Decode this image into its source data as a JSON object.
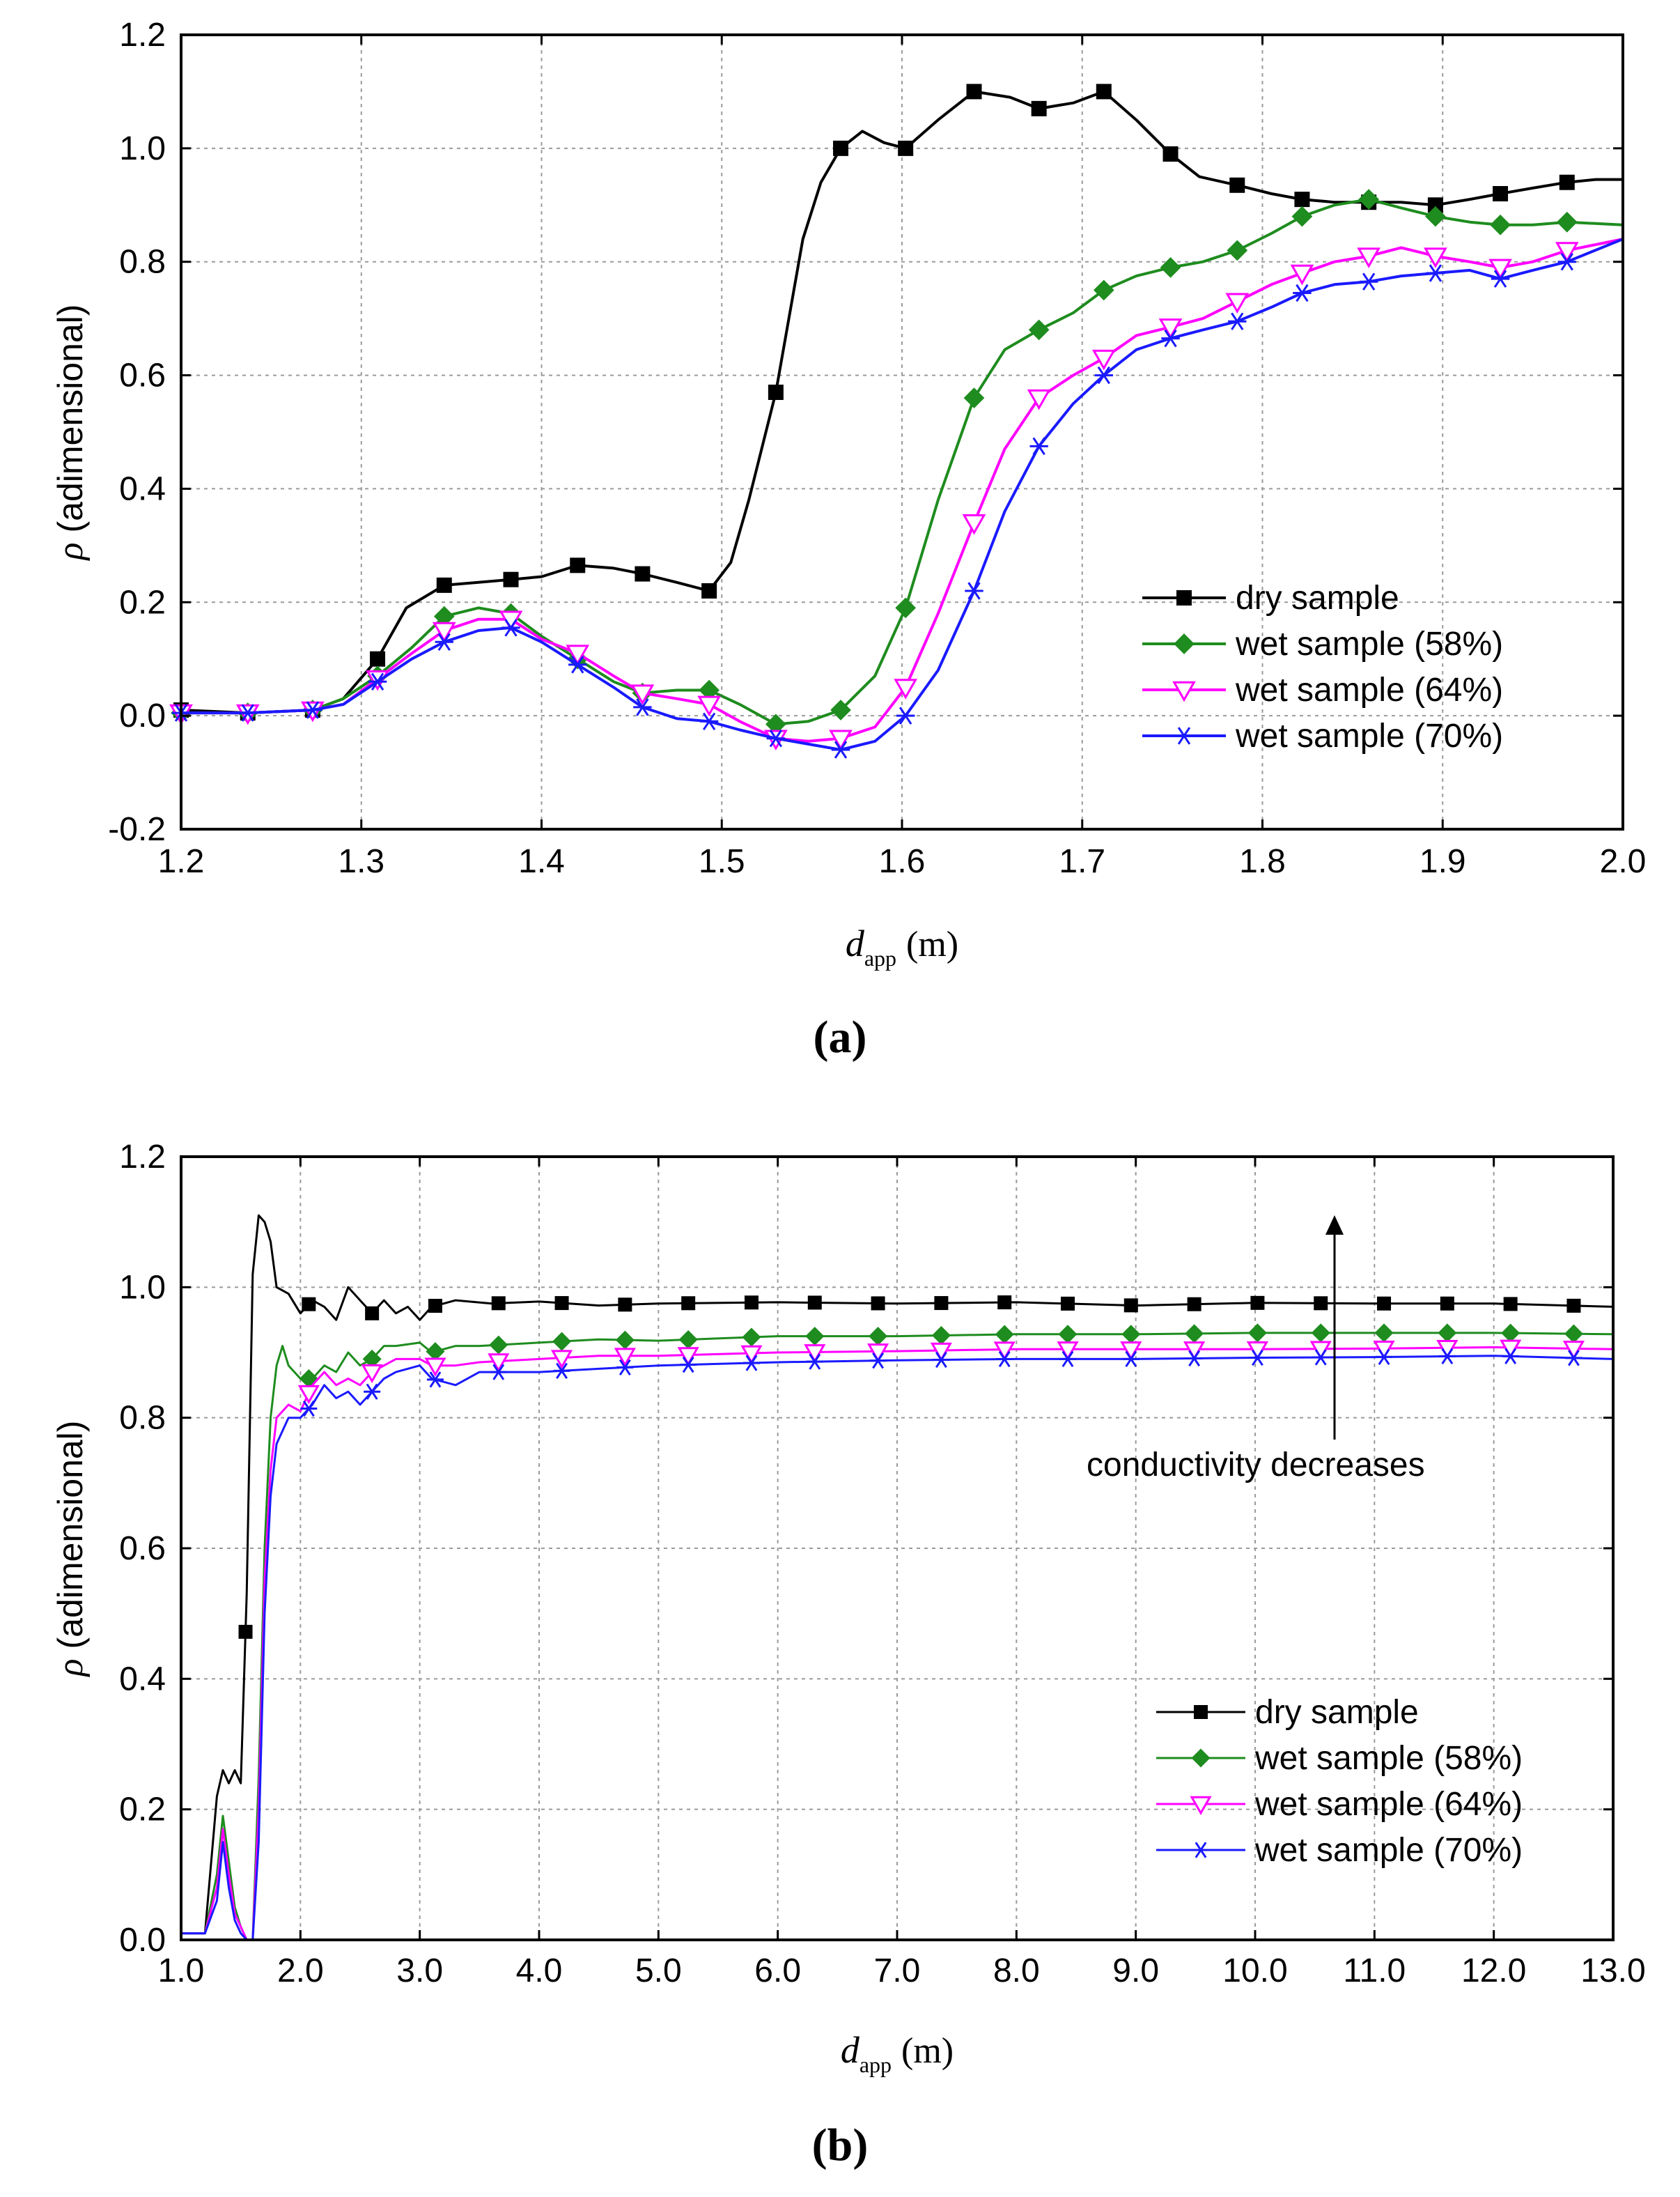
{
  "panels": [
    {
      "panel_label": "(a)",
      "ylabel_symbol": "ρ",
      "ylabel": "(adimensional)",
      "xlabel_symbol": "d",
      "xlabel_subscript": "app",
      "xlabel_unit": "(m)",
      "legend": [
        "dry sample",
        "wet sample (58%)",
        "wet sample (64%)",
        "wet sample (70%)"
      ]
    },
    {
      "panel_label": "(b)",
      "ylabel_symbol": "ρ",
      "ylabel": "(adimensional)",
      "xlabel_symbol": "d",
      "xlabel_subscript": "app",
      "xlabel_unit": "(m)",
      "legend": [
        "dry sample",
        "wet sample (58%)",
        "wet sample (64%)",
        "wet sample (70%)"
      ],
      "annotation": "conductivity decreases"
    }
  ],
  "chart_data": [
    {
      "type": "line",
      "title": "",
      "xlabel": "d_app (m)",
      "ylabel": "ρ (adimensional)",
      "xlim": [
        1.2,
        2.0
      ],
      "ylim": [
        -0.2,
        1.2
      ],
      "xticks": [
        "1.2",
        "1.3",
        "1.4",
        "1.5",
        "1.6",
        "1.7",
        "1.8",
        "1.9",
        "2.0"
      ],
      "yticks": [
        "-0.2",
        "0.0",
        "0.2",
        "0.4",
        "0.6",
        "0.8",
        "1.0",
        "1.2"
      ],
      "grid": true,
      "legend_position": "lower-right",
      "series": [
        {
          "name": "dry sample",
          "color": "#000000",
          "marker": "square",
          "x": [
            1.2,
            1.237,
            1.273,
            1.29,
            1.309,
            1.325,
            1.346,
            1.365,
            1.383,
            1.4,
            1.42,
            1.44,
            1.456,
            1.475,
            1.493,
            1.505,
            1.515,
            1.53,
            1.545,
            1.555,
            1.566,
            1.578,
            1.59,
            1.602,
            1.62,
            1.64,
            1.66,
            1.676,
            1.695,
            1.712,
            1.73,
            1.749,
            1.765,
            1.786,
            1.805,
            1.822,
            1.84,
            1.859,
            1.877,
            1.896,
            1.915,
            1.932,
            1.95,
            1.969,
            1.985,
            2.0
          ],
          "y": [
            0.01,
            0.005,
            0.01,
            0.03,
            0.1,
            0.19,
            0.23,
            0.235,
            0.24,
            0.245,
            0.265,
            0.26,
            0.25,
            0.235,
            0.22,
            0.27,
            0.38,
            0.57,
            0.84,
            0.94,
            1.0,
            1.03,
            1.01,
            1.0,
            1.05,
            1.1,
            1.09,
            1.07,
            1.08,
            1.1,
            1.05,
            0.99,
            0.95,
            0.935,
            0.92,
            0.91,
            0.905,
            0.905,
            0.905,
            0.9,
            0.91,
            0.92,
            0.93,
            0.94,
            0.945,
            0.945
          ],
          "marker_x": [
            1.2,
            1.237,
            1.273,
            1.309,
            1.346,
            1.383,
            1.42,
            1.456,
            1.493,
            1.53,
            1.566,
            1.602,
            1.64,
            1.676,
            1.712,
            1.749,
            1.786,
            1.822,
            1.859,
            1.896,
            1.932,
            1.969
          ]
        },
        {
          "name": "wet sample (58%)",
          "color": "#1e8c1e",
          "marker": "diamond",
          "x": [
            1.2,
            1.237,
            1.273,
            1.29,
            1.309,
            1.328,
            1.346,
            1.365,
            1.383,
            1.4,
            1.42,
            1.44,
            1.456,
            1.475,
            1.493,
            1.51,
            1.53,
            1.548,
            1.566,
            1.585,
            1.602,
            1.62,
            1.64,
            1.657,
            1.676,
            1.695,
            1.712,
            1.73,
            1.749,
            1.767,
            1.786,
            1.805,
            1.822,
            1.84,
            1.859,
            1.877,
            1.896,
            1.915,
            1.932,
            1.95,
            1.969,
            2.0
          ],
          "y": [
            0.005,
            0.005,
            0.01,
            0.03,
            0.07,
            0.12,
            0.175,
            0.19,
            0.18,
            0.14,
            0.1,
            0.06,
            0.04,
            0.045,
            0.045,
            0.02,
            -0.015,
            -0.01,
            0.01,
            0.07,
            0.19,
            0.38,
            0.56,
            0.645,
            0.68,
            0.71,
            0.75,
            0.775,
            0.79,
            0.8,
            0.82,
            0.85,
            0.88,
            0.9,
            0.91,
            0.895,
            0.88,
            0.87,
            0.865,
            0.865,
            0.87,
            0.865
          ],
          "marker_x": [
            1.2,
            1.237,
            1.273,
            1.309,
            1.346,
            1.383,
            1.42,
            1.456,
            1.493,
            1.53,
            1.566,
            1.602,
            1.64,
            1.676,
            1.712,
            1.749,
            1.786,
            1.822,
            1.859,
            1.896,
            1.932,
            1.969
          ]
        },
        {
          "name": "wet sample (64%)",
          "color": "#ff00ff",
          "marker": "triangle-down",
          "x": [
            1.2,
            1.237,
            1.273,
            1.29,
            1.309,
            1.328,
            1.346,
            1.365,
            1.383,
            1.4,
            1.42,
            1.44,
            1.456,
            1.475,
            1.493,
            1.51,
            1.53,
            1.548,
            1.566,
            1.585,
            1.602,
            1.62,
            1.64,
            1.657,
            1.676,
            1.695,
            1.712,
            1.73,
            1.749,
            1.767,
            1.786,
            1.805,
            1.822,
            1.84,
            1.859,
            1.877,
            1.896,
            1.915,
            1.932,
            1.95,
            1.969,
            2.0
          ],
          "y": [
            0.005,
            0.005,
            0.01,
            0.02,
            0.065,
            0.11,
            0.15,
            0.17,
            0.17,
            0.135,
            0.11,
            0.07,
            0.04,
            0.03,
            0.02,
            -0.01,
            -0.04,
            -0.045,
            -0.04,
            -0.02,
            0.05,
            0.18,
            0.34,
            0.47,
            0.56,
            0.6,
            0.63,
            0.67,
            0.685,
            0.7,
            0.73,
            0.76,
            0.78,
            0.8,
            0.81,
            0.825,
            0.81,
            0.8,
            0.79,
            0.8,
            0.82,
            0.84
          ],
          "marker_x": [
            1.2,
            1.237,
            1.273,
            1.309,
            1.346,
            1.383,
            1.42,
            1.456,
            1.493,
            1.53,
            1.566,
            1.602,
            1.64,
            1.676,
            1.712,
            1.749,
            1.786,
            1.822,
            1.859,
            1.896,
            1.932,
            1.969
          ]
        },
        {
          "name": "wet sample (70%)",
          "color": "#1a1aff",
          "marker": "asterisk",
          "x": [
            1.2,
            1.237,
            1.273,
            1.29,
            1.309,
            1.328,
            1.346,
            1.365,
            1.383,
            1.4,
            1.42,
            1.44,
            1.456,
            1.475,
            1.493,
            1.51,
            1.53,
            1.548,
            1.566,
            1.585,
            1.602,
            1.62,
            1.64,
            1.657,
            1.676,
            1.695,
            1.712,
            1.73,
            1.749,
            1.767,
            1.786,
            1.805,
            1.822,
            1.84,
            1.859,
            1.877,
            1.896,
            1.915,
            1.932,
            1.95,
            1.969,
            2.0
          ],
          "y": [
            0.005,
            0.005,
            0.01,
            0.02,
            0.06,
            0.1,
            0.13,
            0.15,
            0.155,
            0.13,
            0.09,
            0.05,
            0.015,
            -0.005,
            -0.01,
            -0.025,
            -0.04,
            -0.05,
            -0.06,
            -0.045,
            0.0,
            0.08,
            0.22,
            0.36,
            0.475,
            0.55,
            0.6,
            0.645,
            0.665,
            0.68,
            0.695,
            0.72,
            0.745,
            0.76,
            0.765,
            0.775,
            0.78,
            0.785,
            0.77,
            0.785,
            0.8,
            0.84
          ],
          "marker_x": [
            1.2,
            1.237,
            1.273,
            1.309,
            1.346,
            1.383,
            1.42,
            1.456,
            1.493,
            1.53,
            1.566,
            1.602,
            1.64,
            1.676,
            1.712,
            1.749,
            1.786,
            1.822,
            1.859,
            1.896,
            1.932,
            1.969
          ]
        }
      ]
    },
    {
      "type": "line",
      "title": "",
      "xlabel": "d_app (m)",
      "ylabel": "ρ (adimensional)",
      "xlim": [
        1.0,
        13.0
      ],
      "ylim": [
        0.0,
        1.2
      ],
      "xticks": [
        "1.0",
        "2.0",
        "3.0",
        "4.0",
        "5.0",
        "6.0",
        "7.0",
        "8.0",
        "9.0",
        "10.0",
        "11.0",
        "12.0",
        "13.0"
      ],
      "yticks": [
        "0.0",
        "0.2",
        "0.4",
        "0.6",
        "0.8",
        "1.0",
        "1.2"
      ],
      "grid": true,
      "legend_position": "lower-right",
      "series": [
        {
          "name": "dry sample",
          "color": "#000000",
          "marker": "square",
          "x": [
            1.0,
            1.1,
            1.2,
            1.3,
            1.35,
            1.4,
            1.45,
            1.5,
            1.55,
            1.6,
            1.65,
            1.7,
            1.75,
            1.8,
            1.9,
            2.0,
            2.1,
            2.2,
            2.3,
            2.4,
            2.5,
            2.6,
            2.7,
            2.8,
            2.9,
            3.0,
            3.1,
            3.3,
            3.6,
            4.0,
            4.5,
            5.0,
            6.0,
            7.0,
            8.0,
            9.0,
            10.0,
            11.0,
            12.0,
            13.0
          ],
          "y": [
            0.01,
            0.01,
            0.01,
            0.22,
            0.26,
            0.24,
            0.26,
            0.24,
            0.53,
            1.02,
            1.11,
            1.1,
            1.07,
            1.0,
            0.99,
            0.96,
            0.98,
            0.97,
            0.95,
            1.0,
            0.98,
            0.96,
            0.98,
            0.96,
            0.97,
            0.95,
            0.97,
            0.98,
            0.975,
            0.978,
            0.972,
            0.975,
            0.977,
            0.975,
            0.977,
            0.972,
            0.976,
            0.975,
            0.975,
            0.97
          ],
          "marker_x": [
            1.54,
            2.07,
            2.6,
            3.13,
            3.66,
            4.19,
            4.72,
            5.25,
            5.78,
            6.31,
            6.84,
            7.37,
            7.9,
            8.43,
            8.96,
            9.49,
            10.02,
            10.55,
            11.08,
            11.61,
            12.14,
            12.67
          ]
        },
        {
          "name": "wet sample (58%)",
          "color": "#1e8c1e",
          "marker": "diamond",
          "x": [
            1.0,
            1.1,
            1.2,
            1.3,
            1.35,
            1.4,
            1.45,
            1.5,
            1.55,
            1.58,
            1.6,
            1.65,
            1.7,
            1.75,
            1.8,
            1.85,
            1.9,
            2.0,
            2.1,
            2.2,
            2.3,
            2.4,
            2.5,
            2.6,
            2.7,
            2.8,
            3.0,
            3.1,
            3.3,
            3.5,
            4.0,
            4.5,
            5.0,
            6.0,
            7.0,
            8.0,
            9.0,
            10.0,
            11.0,
            12.0,
            13.0
          ],
          "y": [
            0.01,
            0.01,
            0.01,
            0.1,
            0.19,
            0.12,
            0.05,
            0.02,
            0.0,
            0.0,
            0.0,
            0.25,
            0.6,
            0.8,
            0.88,
            0.91,
            0.88,
            0.86,
            0.86,
            0.88,
            0.87,
            0.9,
            0.88,
            0.89,
            0.91,
            0.91,
            0.915,
            0.9,
            0.91,
            0.91,
            0.915,
            0.92,
            0.918,
            0.925,
            0.925,
            0.928,
            0.928,
            0.93,
            0.93,
            0.93,
            0.928
          ],
          "marker_x": [
            2.07,
            2.6,
            3.13,
            3.66,
            4.19,
            4.72,
            5.25,
            5.78,
            6.31,
            6.84,
            7.37,
            7.9,
            8.43,
            8.96,
            9.49,
            10.02,
            10.55,
            11.08,
            11.61,
            12.14,
            12.67
          ]
        },
        {
          "name": "wet sample (64%)",
          "color": "#ff00ff",
          "marker": "triangle-down",
          "x": [
            1.0,
            1.1,
            1.2,
            1.3,
            1.35,
            1.4,
            1.45,
            1.5,
            1.55,
            1.6,
            1.65,
            1.7,
            1.75,
            1.8,
            1.9,
            2.0,
            2.1,
            2.2,
            2.3,
            2.4,
            2.5,
            2.6,
            2.7,
            2.8,
            3.0,
            3.1,
            3.3,
            3.5,
            4.0,
            4.5,
            5.0,
            6.0,
            7.0,
            8.0,
            9.0,
            10.0,
            11.0,
            12.0,
            13.0
          ],
          "y": [
            0.01,
            0.01,
            0.01,
            0.08,
            0.17,
            0.1,
            0.04,
            0.02,
            0.0,
            0.0,
            0.2,
            0.55,
            0.72,
            0.8,
            0.82,
            0.81,
            0.85,
            0.87,
            0.85,
            0.86,
            0.85,
            0.87,
            0.88,
            0.89,
            0.89,
            0.88,
            0.88,
            0.885,
            0.89,
            0.895,
            0.895,
            0.9,
            0.902,
            0.905,
            0.905,
            0.905,
            0.906,
            0.908,
            0.905
          ],
          "marker_x": [
            2.07,
            2.6,
            3.13,
            3.66,
            4.19,
            4.72,
            5.25,
            5.78,
            6.31,
            6.84,
            7.37,
            7.9,
            8.43,
            8.96,
            9.49,
            10.02,
            10.55,
            11.08,
            11.61,
            12.14,
            12.67
          ]
        },
        {
          "name": "wet sample (70%)",
          "color": "#1a1aff",
          "marker": "asterisk",
          "x": [
            1.0,
            1.1,
            1.2,
            1.3,
            1.35,
            1.4,
            1.45,
            1.5,
            1.55,
            1.6,
            1.65,
            1.7,
            1.75,
            1.8,
            1.9,
            2.0,
            2.1,
            2.2,
            2.3,
            2.4,
            2.5,
            2.6,
            2.7,
            2.8,
            3.0,
            3.1,
            3.3,
            3.5,
            4.0,
            4.5,
            5.0,
            6.0,
            7.0,
            8.0,
            9.0,
            10.0,
            11.0,
            12.0,
            13.0
          ],
          "y": [
            0.01,
            0.01,
            0.01,
            0.06,
            0.15,
            0.08,
            0.03,
            0.01,
            0.0,
            0.0,
            0.15,
            0.5,
            0.68,
            0.76,
            0.8,
            0.8,
            0.82,
            0.85,
            0.83,
            0.84,
            0.82,
            0.84,
            0.86,
            0.87,
            0.88,
            0.86,
            0.85,
            0.87,
            0.87,
            0.875,
            0.88,
            0.885,
            0.888,
            0.89,
            0.89,
            0.892,
            0.893,
            0.895,
            0.89
          ],
          "marker_x": [
            2.07,
            2.6,
            3.13,
            3.66,
            4.19,
            4.72,
            5.25,
            5.78,
            6.31,
            6.84,
            7.37,
            7.9,
            8.43,
            8.96,
            9.49,
            10.02,
            10.55,
            11.08,
            11.61,
            12.14,
            12.67
          ]
        }
      ]
    }
  ]
}
